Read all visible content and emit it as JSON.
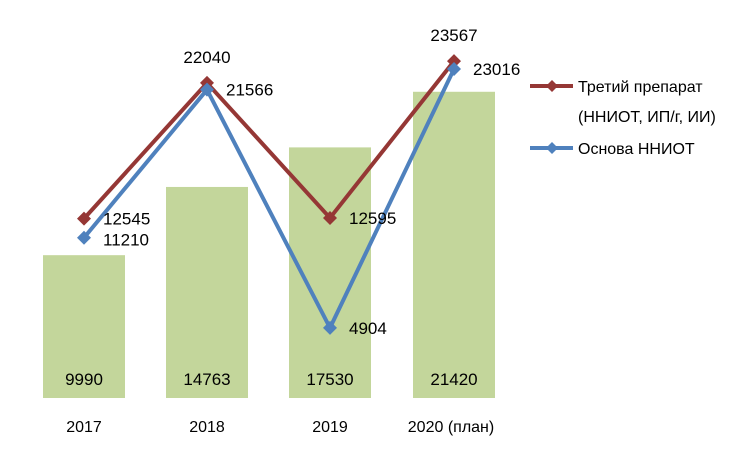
{
  "chart_data": {
    "type": "bar+line",
    "categories": [
      "2017",
      "2018",
      "2019",
      "2020 (план)"
    ],
    "bars": {
      "values": [
        9990,
        14763,
        17530,
        21420
      ],
      "color": "#c3d69b"
    },
    "series": [
      {
        "name": "Третий препарат (ННИОТ, ИП/г, ИИ)",
        "legend_lines": [
          "Третий препарат",
          "(ННИОТ, ИП/г, ИИ)"
        ],
        "values": [
          12545,
          22040,
          12595,
          23567
        ],
        "color": "#953735",
        "marker": "diamond"
      },
      {
        "name": "Основа ННИОТ",
        "legend_lines": [
          "Основа ННИОТ"
        ],
        "values": [
          11210,
          21566,
          4904,
          23016
        ],
        "color": "#4f81bd",
        "marker": "diamond"
      }
    ],
    "ylim": [
      0,
      27000
    ],
    "grid": false,
    "legend_position": "right"
  }
}
